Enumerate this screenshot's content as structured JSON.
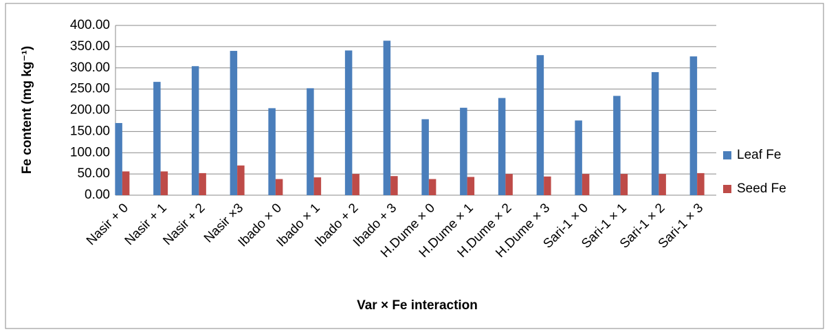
{
  "chart_data": {
    "type": "bar",
    "y_label": "Fe content (mg kg⁻¹)",
    "x_label": "Var × Fe interaction",
    "categories": [
      "Nasir + 0",
      "Nasir + 1",
      "Nasir + 2",
      "Nasir ×3",
      "Ibado × 0",
      "Ibado × 1",
      "Ibado + 2",
      "Ibado + 3",
      "H.Dume × 0",
      "H.Dume × 1",
      "H.Dume × 2",
      "H.Dume × 3",
      "Sari-1 × 0",
      "Sari-1 × 1",
      "Sari-1 × 2",
      "Sari-1 × 3"
    ],
    "series": [
      {
        "name": "Leaf Fe",
        "color": "#4a7ebb",
        "values": [
          170,
          267,
          304,
          340,
          205,
          252,
          341,
          364,
          179,
          206,
          229,
          330,
          176,
          234,
          290,
          327
        ]
      },
      {
        "name": "Seed Fe",
        "color": "#be4b48",
        "values": [
          56,
          56,
          52,
          70,
          38,
          42,
          50,
          45,
          38,
          43,
          50,
          44,
          50,
          50,
          50,
          52
        ]
      }
    ],
    "ylim": [
      0,
      400
    ],
    "yticks": [
      {
        "value": 0,
        "label": "0.00"
      },
      {
        "value": 50,
        "label": "50.00"
      },
      {
        "value": 100,
        "label": "100.00"
      },
      {
        "value": 150,
        "label": "150.00"
      },
      {
        "value": 200,
        "label": "200.00"
      },
      {
        "value": 250,
        "label": "250.00"
      },
      {
        "value": 300,
        "label": "300.00"
      },
      {
        "value": 350,
        "label": "350.00"
      },
      {
        "value": 400,
        "label": "400.00"
      }
    ],
    "grid": true,
    "legend": "right"
  }
}
